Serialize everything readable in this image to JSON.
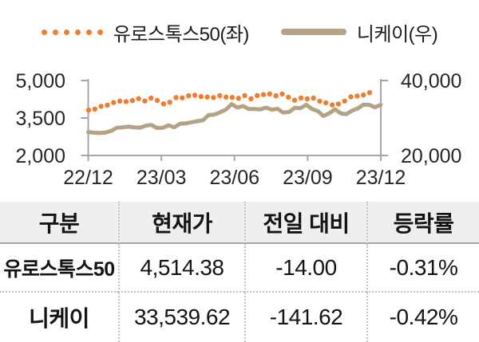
{
  "legend": {
    "series1": {
      "label": "유로스톡스50(좌)",
      "color": "#ED7D31"
    },
    "series2": {
      "label": "니케이(우)",
      "color": "#B3A284"
    }
  },
  "chart_data": {
    "type": "line",
    "title": "",
    "xlabel": "",
    "ylabel_left": "",
    "ylabel_right": "",
    "grid": false,
    "legend_position": "top",
    "x_ticks": [
      "22/12",
      "23/03",
      "23/06",
      "23/09",
      "23/12"
    ],
    "left_axis": {
      "min": 2000,
      "max": 5000,
      "ticks": [
        "5,000",
        "3,500",
        "2,000"
      ],
      "tick_values": [
        5000,
        3500,
        2000
      ]
    },
    "right_axis": {
      "min": 20000,
      "max": 40000,
      "ticks": [
        "40,000",
        "20,000"
      ],
      "tick_values": [
        40000,
        20000
      ]
    },
    "axis_color": "#A6A6A6",
    "label_color": "#262626",
    "series": [
      {
        "name": "유로스톡스50(좌)",
        "axis": "left",
        "style": "dotted",
        "color": "#ED7D31",
        "values": [
          3817,
          3855,
          3965,
          4018,
          4120,
          4178,
          4158,
          4198,
          4275,
          4179,
          4295,
          4205,
          4065,
          4131,
          4315,
          4309,
          4390,
          4409,
          4359,
          4340,
          4317,
          4395,
          4337,
          4323,
          4289,
          4400,
          4271,
          4399,
          4437,
          4463,
          4391,
          4460,
          4333,
          4212,
          4297,
          4265,
          4295,
          4175,
          4107,
          4024,
          4061,
          4177,
          4347,
          4382,
          4419,
          4514
        ]
      },
      {
        "name": "니케이(우)",
        "axis": "right",
        "style": "solid",
        "color": "#B3A284",
        "values": [
          26235,
          26095,
          25974,
          26120,
          26553,
          27383,
          27509,
          27671,
          27513,
          27423,
          27927,
          28144,
          27334,
          27385,
          28041,
          27518,
          28493,
          28564,
          28856,
          29158,
          29388,
          30808,
          30916,
          31524,
          32265,
          33706,
          32781,
          33189,
          32388,
          32391,
          32304,
          32759,
          32193,
          32473,
          31451,
          31624,
          32711,
          32607,
          33533,
          32402,
          31858,
          30527,
          31260,
          32316,
          31259,
          30992,
          31950,
          32568,
          33585,
          33486,
          32858,
          33540
        ]
      }
    ]
  },
  "table": {
    "headers": [
      "구분",
      "현재가",
      "전일 대비",
      "등락률"
    ],
    "rows": [
      {
        "name": "유로스톡스50",
        "price": "4,514.38",
        "change": "-14.00",
        "pct": "-0.31%"
      },
      {
        "name": "니케이",
        "price": "33,539.62",
        "change": "-141.62",
        "pct": "-0.42%"
      }
    ]
  }
}
